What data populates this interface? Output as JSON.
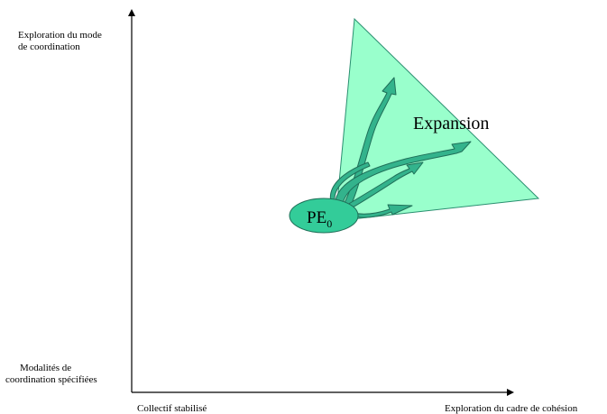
{
  "axes": {
    "y_top_label_line1": "Exploration du mode",
    "y_top_label_line2": "de coordination",
    "y_bottom_label_line1": "Modalités de",
    "y_bottom_label_line2": "coordination spécifiées",
    "x_left_label": "Collectif stabilisé",
    "x_right_label": "Exploration du cadre de cohésion"
  },
  "diagram": {
    "expansion_label": "Expansion",
    "origin_label": "PE",
    "origin_subscript": "0"
  },
  "colors": {
    "triangle_fill": "#99ffcc",
    "triangle_stroke": "#2a8f70",
    "ellipse_fill": "#33cc99",
    "arrow_fill": "#33b38c",
    "arrow_stroke": "#1f6f58",
    "axis": "#000000"
  }
}
